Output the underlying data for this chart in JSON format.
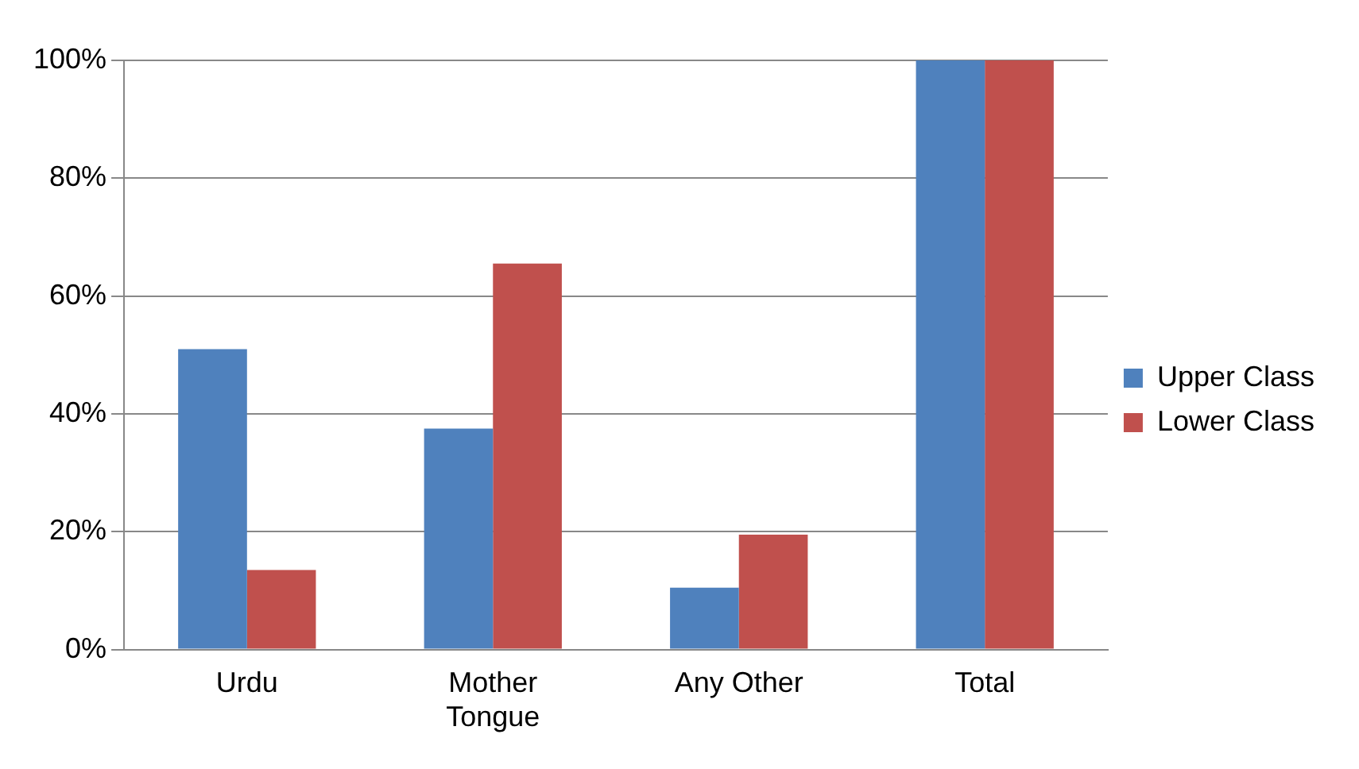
{
  "chart_data": {
    "type": "bar",
    "categories": [
      "Urdu",
      "Mother Tongue",
      "Any Other",
      "Total"
    ],
    "series": [
      {
        "name": "Upper Class",
        "color": "#4f81bd",
        "values": [
          51,
          37.5,
          10.5,
          100
        ]
      },
      {
        "name": "Lower Class",
        "color": "#c0504d",
        "values": [
          13.5,
          65.5,
          19.5,
          100
        ]
      }
    ],
    "ylim": [
      0,
      100
    ],
    "yticks": [
      {
        "value": 0,
        "label": "0%"
      },
      {
        "value": 20,
        "label": "20%"
      },
      {
        "value": 40,
        "label": "40%"
      },
      {
        "value": 60,
        "label": "60%"
      },
      {
        "value": 80,
        "label": "80%"
      },
      {
        "value": 100,
        "label": "100%"
      }
    ],
    "grid": "y",
    "legend": "right"
  }
}
